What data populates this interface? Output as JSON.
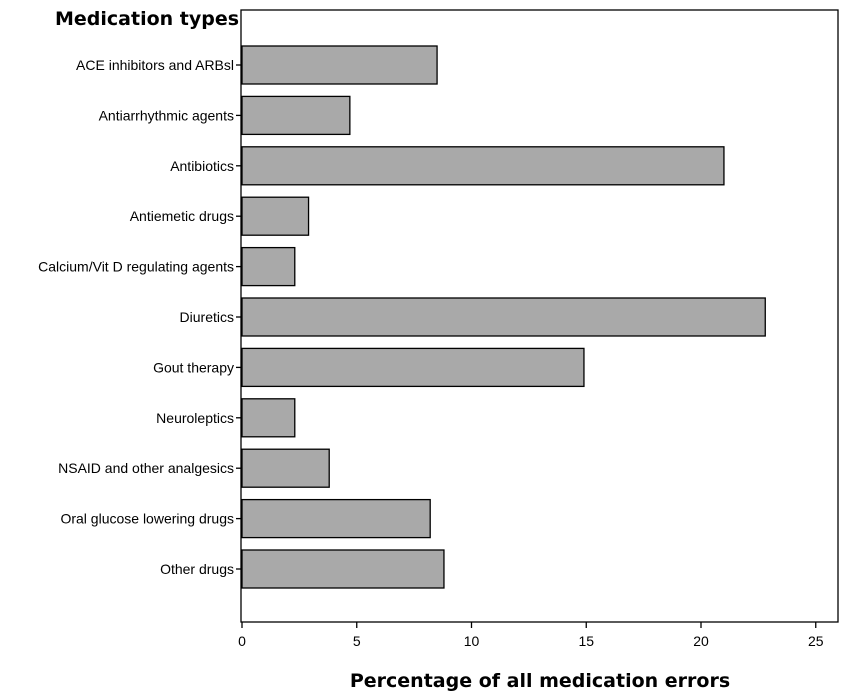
{
  "chart_data": {
    "type": "bar",
    "orientation": "horizontal",
    "title": "Medication types",
    "xlabel": "Percentage of all medication errors",
    "ylabel": "",
    "xlim": [
      0,
      26
    ],
    "xticks": [
      0,
      5,
      10,
      15,
      20,
      25
    ],
    "categories": [
      "ACE inhibitors and ARBsl",
      "Antiarrhythmic agents",
      "Antibiotics",
      "Antiemetic drugs",
      "Calcium/Vit D regulating agents",
      "Diuretics",
      "Gout therapy",
      "Neuroleptics",
      "NSAID and other analgesics",
      "Oral glucose lowering drugs",
      "Other drugs"
    ],
    "values": [
      8.5,
      4.7,
      21.0,
      2.9,
      2.3,
      22.8,
      14.9,
      2.3,
      3.8,
      8.2,
      8.8
    ],
    "bar_color": "#a9a9a9",
    "grid": false
  }
}
